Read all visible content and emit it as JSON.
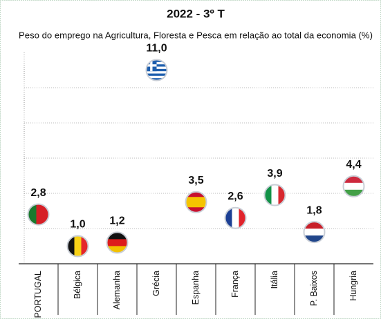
{
  "chart_data": {
    "type": "dot",
    "title": "2022 - 3º T",
    "subtitle": "Peso do emprego na Agricultura, Floresta e Pesca em relação ao total da economia (%)",
    "categories": [
      "PORTUGAL",
      "Bélgica",
      "Alemanha",
      "Grécia",
      "Espanha",
      "França",
      "Itália",
      "P. Baixos",
      "Hungria"
    ],
    "values": [
      2.8,
      1.0,
      1.2,
      11.0,
      3.5,
      2.6,
      3.9,
      1.8,
      4.4
    ],
    "value_labels": [
      "2,8",
      "1,0",
      "1,2",
      "11,0",
      "3,5",
      "2,6",
      "3,9",
      "1,8",
      "4,4"
    ],
    "ylim": [
      0,
      12
    ],
    "gridlines": [
      2,
      4,
      6,
      8,
      10
    ],
    "grid": true
  }
}
